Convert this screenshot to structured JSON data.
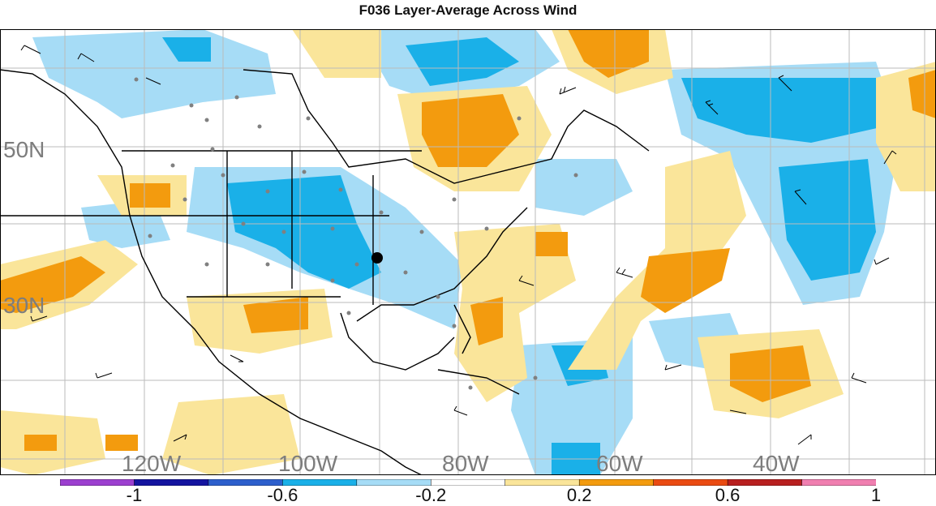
{
  "title": "F036 Layer-Average Across Wind",
  "map": {
    "latitude_labels": [
      "50N",
      "30N"
    ],
    "longitude_labels": [
      "120W",
      "100W",
      "80W",
      "60W",
      "40W"
    ]
  },
  "colorbar": {
    "colors": [
      "#9c3fcf",
      "#1414a0",
      "#2d5fcc",
      "#1ab0e8",
      "#a6dcf6",
      "#ffffff",
      "#fae59a",
      "#f39b0e",
      "#ea4b12",
      "#b81f1f",
      "#f07fb0"
    ],
    "tick_labels": [
      "-1",
      "-0.6",
      "-0.2",
      "0.2",
      "0.6",
      "1"
    ],
    "tick_values": [
      -1,
      -0.6,
      -0.2,
      0.2,
      0.6,
      1
    ]
  },
  "colors": {
    "blue_dark": "#1ab0e8",
    "blue_light": "#a6dcf6",
    "orange": "#f39b0e",
    "yellow": "#fae59a",
    "grid": "#bbbbbb",
    "station_dot": "#808080"
  }
}
